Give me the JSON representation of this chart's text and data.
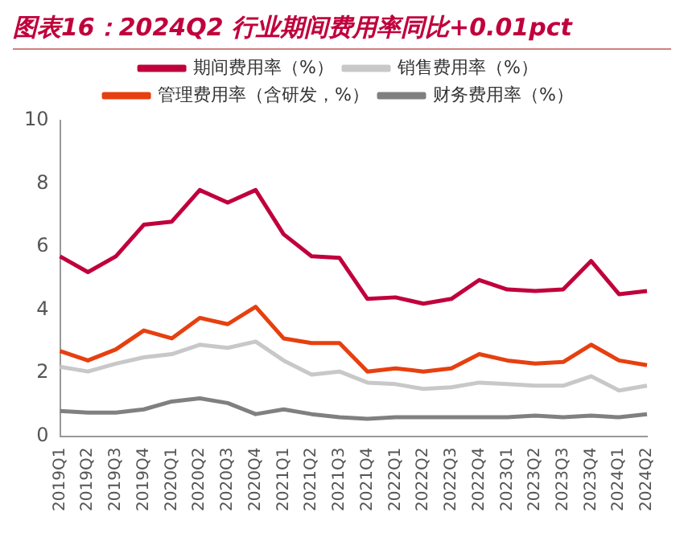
{
  "chart_data": {
    "type": "line",
    "title": "图表16：2024Q2 行业期间费用率同比+0.01pct",
    "categories": [
      "2019Q1",
      "2019Q2",
      "2019Q3",
      "2019Q4",
      "2020Q1",
      "2020Q2",
      "2020Q3",
      "2020Q4",
      "2021Q1",
      "2021Q2",
      "2021Q3",
      "2021Q4",
      "2022Q1",
      "2022Q2",
      "2022Q3",
      "2022Q4",
      "2023Q1",
      "2023Q2",
      "2023Q3",
      "2023Q4",
      "2024Q1",
      "2024Q2"
    ],
    "series": [
      {
        "name": "期间费用率（%）",
        "color": "#c0003c",
        "values": [
          5.7,
          5.2,
          5.7,
          6.7,
          6.8,
          7.8,
          7.4,
          7.8,
          6.4,
          5.7,
          5.65,
          4.35,
          4.4,
          4.2,
          4.35,
          4.95,
          4.65,
          4.6,
          4.65,
          5.55,
          4.5,
          4.6
        ]
      },
      {
        "name": "销售费用率（%）",
        "color": "#c8c8c8",
        "values": [
          2.2,
          2.05,
          2.3,
          2.5,
          2.6,
          2.9,
          2.8,
          3.0,
          2.4,
          1.95,
          2.05,
          1.7,
          1.65,
          1.5,
          1.55,
          1.7,
          1.65,
          1.6,
          1.6,
          1.9,
          1.45,
          1.6
        ]
      },
      {
        "name": "管理费用率（含研发，%）",
        "color": "#e64010",
        "values": [
          2.7,
          2.4,
          2.75,
          3.35,
          3.1,
          3.75,
          3.55,
          4.1,
          3.1,
          2.95,
          2.95,
          2.05,
          2.15,
          2.05,
          2.15,
          2.6,
          2.4,
          2.3,
          2.35,
          2.9,
          2.4,
          2.25
        ]
      },
      {
        "name": "财务费用率（%）",
        "color": "#808080",
        "values": [
          0.8,
          0.75,
          0.75,
          0.85,
          1.1,
          1.2,
          1.05,
          0.7,
          0.85,
          0.7,
          0.6,
          0.55,
          0.6,
          0.6,
          0.6,
          0.6,
          0.6,
          0.65,
          0.6,
          0.65,
          0.6,
          0.7
        ]
      }
    ],
    "ylim": [
      0,
      10
    ],
    "yticks": [
      0,
      2,
      4,
      6,
      8,
      10
    ],
    "grid": false,
    "legend": "top",
    "marker": "none",
    "line_style": "solid"
  }
}
